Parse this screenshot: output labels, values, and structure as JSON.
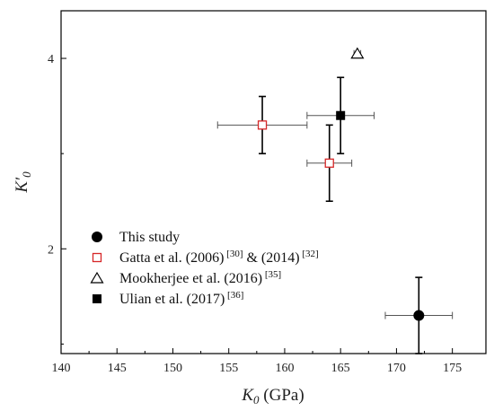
{
  "chart_data": {
    "type": "scatter",
    "xlabel": {
      "symbol": "K",
      "sub": "0",
      "unit": " (GPa)"
    },
    "ylabel": {
      "symbol": "K′",
      "sub": "0"
    },
    "xlim": [
      140,
      178
    ],
    "ylim": [
      0.9,
      4.5
    ],
    "xticks": [
      140,
      145,
      150,
      155,
      160,
      165,
      170,
      175
    ],
    "yticks": [
      2,
      4
    ],
    "legend_position": "bottom-left",
    "grid": false,
    "series": [
      {
        "name": "This study",
        "marker": "circle-filled",
        "color": "#000000",
        "points": [
          {
            "x": 172,
            "y": 1.3,
            "xerr": 3,
            "yerr": 0.4
          }
        ]
      },
      {
        "name": "Gatta et al. (2006)",
        "name_sup1": "[30]",
        "name_mid": " & (2014)",
        "name_sup2": "[32]",
        "marker": "square-open",
        "color": "#d62728",
        "points": [
          {
            "x": 158,
            "y": 3.3,
            "xerr": 4,
            "yerr": 0.3
          },
          {
            "x": 164,
            "y": 2.9,
            "xerr": 2,
            "yerr": 0.4
          }
        ]
      },
      {
        "name": "Mookherjee et al. (2016)",
        "name_sup1": "[35]",
        "marker": "triangle-open",
        "color": "#000000",
        "points": [
          {
            "x": 166.5,
            "y": 4.05,
            "xerr": 0.3,
            "yerr": 0
          }
        ]
      },
      {
        "name": "Ulian et al. (2017)",
        "name_sup1": "[36]",
        "marker": "square-filled",
        "color": "#000000",
        "points": [
          {
            "x": 165,
            "y": 3.4,
            "xerr": 3,
            "yerr": 0.4
          }
        ]
      }
    ]
  }
}
